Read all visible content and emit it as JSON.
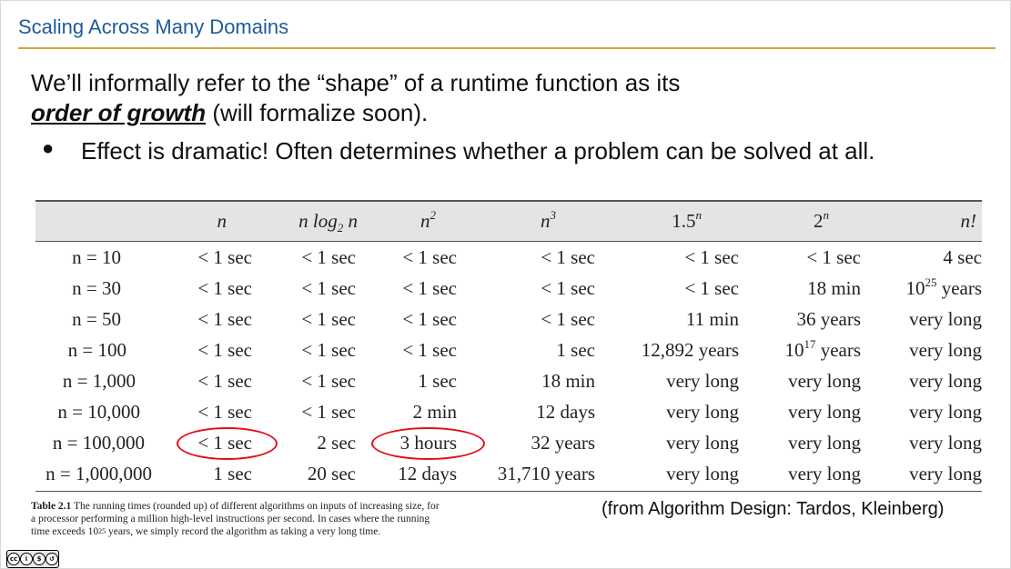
{
  "slide": {
    "title": "Scaling Across Many Domains",
    "intro_pre": "We’ll informally refer to the “shape” of a runtime function as its",
    "order_of_growth": "order of growth",
    "intro_post": " (will formalize soon).",
    "bullet": "Effect is dramatic! Often determines whether a problem can be solved at all."
  },
  "table": {
    "headers": {
      "n": "n",
      "nlogn_a": "n log",
      "nlogn_sub": "2",
      "nlogn_b": " n",
      "n2_base": "n",
      "n2_exp": "2",
      "n3_base": "n",
      "n3_exp": "3",
      "p15_base": "1.5",
      "p15_exp": "n",
      "p2_base": "2",
      "p2_exp": "n",
      "nfact": "n!"
    },
    "rows": [
      {
        "label": "n = 10",
        "c1": "< 1 sec",
        "c2": "< 1 sec",
        "c3": "< 1 sec",
        "c4": "< 1 sec",
        "c5": "< 1 sec",
        "c6": "< 1 sec",
        "c7": "4 sec"
      },
      {
        "label": "n = 30",
        "c1": "< 1 sec",
        "c2": "< 1 sec",
        "c3": "< 1 sec",
        "c4": "< 1 sec",
        "c5": "< 1 sec",
        "c6": "18 min",
        "c7_base": "10",
        "c7_exp": "25",
        "c7_post": " years"
      },
      {
        "label": "n = 50",
        "c1": "< 1 sec",
        "c2": "< 1 sec",
        "c3": "< 1 sec",
        "c4": "< 1 sec",
        "c5": "11 min",
        "c6": "36 years",
        "c7": "very long"
      },
      {
        "label": "n = 100",
        "c1": "< 1 sec",
        "c2": "< 1 sec",
        "c3": "< 1 sec",
        "c4": "1 sec",
        "c5": "12,892 years",
        "c6_base": "10",
        "c6_exp": "17",
        "c6_post": " years",
        "c7": "very long"
      },
      {
        "label": "n = 1,000",
        "c1": "< 1 sec",
        "c2": "< 1 sec",
        "c3": "1 sec",
        "c4": "18 min",
        "c5": "very long",
        "c6": "very long",
        "c7": "very long"
      },
      {
        "label": "n = 10,000",
        "c1": "< 1 sec",
        "c2": "< 1 sec",
        "c3": "2 min",
        "c4": "12 days",
        "c5": "very long",
        "c6": "very long",
        "c7": "very long"
      },
      {
        "label": "n = 100,000",
        "c1": "< 1 sec",
        "c2": "2 sec",
        "c3": "3 hours",
        "c4": "32 years",
        "c5": "very long",
        "c6": "very long",
        "c7": "very long"
      },
      {
        "label": "n = 1,000,000",
        "c1": "1 sec",
        "c2": "20 sec",
        "c3": "12 days",
        "c4": "31,710 years",
        "c5": "very long",
        "c6": "very long",
        "c7": "very long"
      }
    ]
  },
  "caption": {
    "bold": "Table 2.1",
    "text_a": " The running times (rounded up) of different algorithms on inputs of increasing size, for a processor performing a million high-level instructions per second. In cases where the running time exceeds 10",
    "exp": "25",
    "text_b": " years, we simply record the algorithm as taking a very long time."
  },
  "source": "(from Algorithm Design: Tardos, Kleinberg)",
  "license": {
    "label": "cc-by-nc-sa"
  },
  "annotation_color": "#e0101a",
  "accent_color": "#d9a33a",
  "title_color": "#1f5b99"
}
